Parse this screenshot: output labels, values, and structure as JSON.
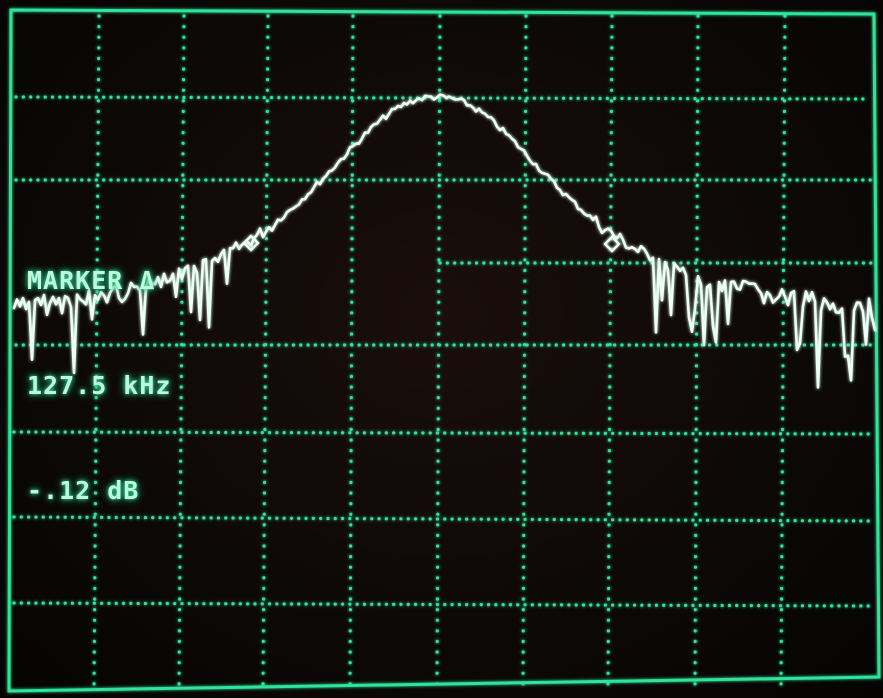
{
  "display": {
    "phosphor_color": "#2fe39a",
    "trace_color": "#eafff5",
    "background_color": "#0d0907"
  },
  "readout": {
    "line1": "MARKER Δ",
    "line2": "127.5 kHz",
    "line3": "-.12 dB"
  }
}
